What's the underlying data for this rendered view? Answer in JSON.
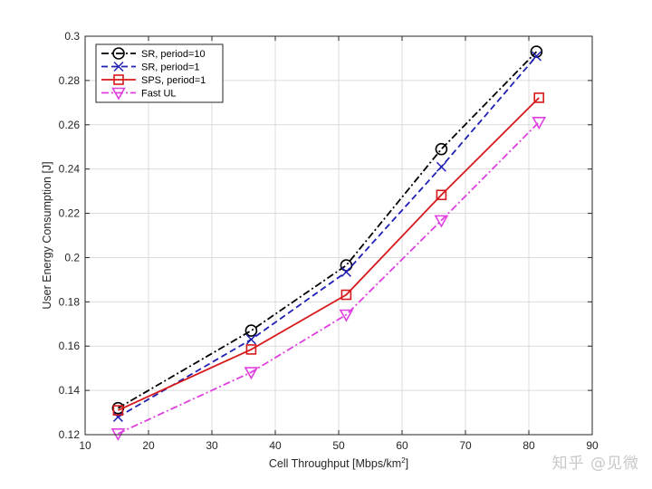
{
  "chart_data": {
    "type": "line",
    "title": "",
    "xlabel": "Cell Throughput [Mbps/km",
    "xlabel_sup": "2",
    "xlabel_close": "]",
    "ylabel": "User Energy Consumption [J]",
    "xlim": [
      10,
      90
    ],
    "ylim": [
      0.12,
      0.3
    ],
    "xticks": [
      10,
      20,
      30,
      40,
      50,
      60,
      70,
      80,
      90
    ],
    "yticks": [
      0.12,
      0.14,
      0.16,
      0.18,
      0.2,
      0.22,
      0.24,
      0.26,
      0.28,
      0.3
    ],
    "xtick_labels": [
      "10",
      "20",
      "30",
      "40",
      "50",
      "60",
      "70",
      "80",
      "90"
    ],
    "ytick_labels": [
      "0.12",
      "0.14",
      "0.16",
      "0.18",
      "0.2",
      "0.22",
      "0.24",
      "0.26",
      "0.28",
      "0.3"
    ],
    "grid": true,
    "legend_position": "top-left",
    "series": [
      {
        "name": "SR, period=10",
        "color": "#000000",
        "dash": "dashdot",
        "marker": "circle",
        "x": [
          15.2,
          36.2,
          51.2,
          66.2,
          81.2
        ],
        "y": [
          0.132,
          0.167,
          0.1965,
          0.249,
          0.293
        ]
      },
      {
        "name": "SR, period=1",
        "color": "#1f1fb4",
        "dash": "dashed",
        "marker": "x",
        "x": [
          15.2,
          36.2,
          51.2,
          66.2,
          81.2
        ],
        "y": [
          0.128,
          0.163,
          0.1935,
          0.241,
          0.291
        ]
      },
      {
        "name": "SPS, period=1",
        "color": "#d7191c",
        "dash": "solid",
        "marker": "square",
        "x": [
          15.2,
          36.2,
          51.2,
          66.2,
          81.6
        ],
        "y": [
          0.131,
          0.1585,
          0.1832,
          0.2283,
          0.2722
        ]
      },
      {
        "name": "Fast UL",
        "color": "#e040e0",
        "dash": "dashdot",
        "marker": "triangle-down",
        "x": [
          15.2,
          36.2,
          51.2,
          66.2,
          81.6
        ],
        "y": [
          0.1205,
          0.1482,
          0.1742,
          0.2168,
          0.2612
        ]
      }
    ]
  },
  "watermark": "知乎 @见微"
}
